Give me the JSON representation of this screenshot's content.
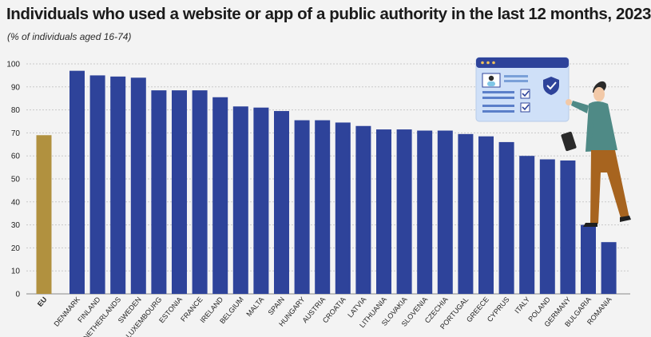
{
  "title": "Individuals who used a website or app of a public authority in the last 12 months, 2023",
  "subtitle": "(% of individuals aged 16-74)",
  "colors": {
    "eu_bar": "#b1913f",
    "country_bar": "#2e439a",
    "gridline": "#c9c9c9",
    "background": "#f3f3f3"
  },
  "illustration": {
    "icons": [
      "browser-window-icon",
      "profile-card-icon",
      "shield-check-icon",
      "checkbox-icon",
      "person-with-phone-icon"
    ]
  },
  "chart_data": {
    "type": "bar",
    "ylim": [
      0,
      100
    ],
    "yticks": [
      0,
      10,
      20,
      30,
      40,
      50,
      60,
      70,
      80,
      90,
      100
    ],
    "grid": true,
    "categories": [
      "EU",
      "DENMARK",
      "FINLAND",
      "NETHERLANDS",
      "SWEDEN",
      "LUXEMBOURG",
      "ESTONIA",
      "FRANCE",
      "IRELAND",
      "BELGIUM",
      "MALTA",
      "SPAIN",
      "HUNGARY",
      "AUSTRIA",
      "CROATIA",
      "LATVIA",
      "LITHUANIA",
      "SLOVAKIA",
      "SLOVENIA",
      "CZECHIA",
      "PORTUGAL",
      "GREECE",
      "CYPRUS",
      "ITALY",
      "POLAND",
      "GERMANY",
      "BULGARIA",
      "ROMANIA"
    ],
    "values": [
      69,
      97,
      95,
      94.5,
      94,
      88.5,
      88.5,
      88.5,
      85.5,
      81.5,
      81,
      79.5,
      75.5,
      75.5,
      74.5,
      73,
      71.5,
      71.5,
      71,
      71,
      69.5,
      68.5,
      66,
      60,
      58.5,
      58,
      30,
      22.5
    ]
  }
}
